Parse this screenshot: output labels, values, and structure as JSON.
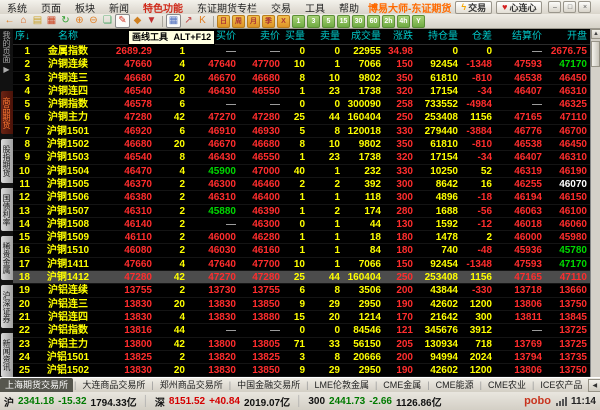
{
  "window": {
    "title": "博易大师-东证期货",
    "trade_button": "交易",
    "heart_button": "心连心",
    "controls": [
      "–",
      "□",
      "×"
    ]
  },
  "menu": {
    "items": [
      "系统",
      "页面",
      "板块",
      "新闻",
      "特色功能",
      "东证期货专栏",
      "交易",
      "工具",
      "帮助"
    ],
    "highlight": "特色功能"
  },
  "toolbar": {
    "icons": [
      {
        "name": "back-icon",
        "glyph": "←",
        "color": "#e07c1f"
      },
      {
        "name": "home-icon",
        "glyph": "⌂",
        "color": "#d8601a"
      },
      {
        "name": "notes-icon",
        "glyph": "▤",
        "color": "#c9a227"
      },
      {
        "name": "card-icon",
        "glyph": "▦",
        "color": "#cc4422"
      },
      {
        "name": "refresh-icon",
        "glyph": "↻",
        "color": "#2f9e2f"
      },
      {
        "name": "zoom-in-icon",
        "glyph": "⊕",
        "color": "#e07c1f"
      },
      {
        "name": "zoom-out-icon",
        "glyph": "⊖",
        "color": "#e07c1f"
      },
      {
        "name": "layers-icon",
        "glyph": "❏",
        "color": "#3aa05a"
      },
      {
        "name": "pencil-icon",
        "glyph": "✎",
        "color": "#d03020",
        "pressed": true
      },
      {
        "name": "ink-icon",
        "glyph": "◆",
        "color": "#d08020"
      },
      {
        "name": "filter-icon",
        "glyph": "▼",
        "color": "#c03030"
      },
      {
        "name": "separator"
      },
      {
        "name": "grid-icon",
        "glyph": "▦",
        "color": "#5070c0",
        "pressed": true
      },
      {
        "name": "chart-icon",
        "glyph": "↗",
        "color": "#c04040"
      },
      {
        "name": "kline-icon",
        "glyph": "K",
        "color": "#e07c1f"
      }
    ],
    "periods_orange": [
      "日",
      "周",
      "月",
      "季",
      "X"
    ],
    "periods_green": [
      "1",
      "3",
      "5",
      "15",
      "30",
      "60",
      "2h",
      "4h",
      "Y"
    ]
  },
  "tooltip": {
    "text": "画线工具",
    "shortcut": "ALT+F12"
  },
  "sidebar": {
    "top_label": "我的页面",
    "top_arrow": "▶",
    "tabs": [
      {
        "label": "商品期货",
        "active": true
      },
      {
        "label": "股指期货",
        "active": false
      },
      {
        "label": "国债利率",
        "active": false
      },
      {
        "label": "稀贵金属",
        "active": false
      },
      {
        "label": "沪深证券",
        "active": false
      },
      {
        "label": "新闻资讯",
        "active": false
      }
    ]
  },
  "table": {
    "headers": [
      "序↓",
      "名称",
      "最新",
      "现量",
      "买价",
      "卖价",
      "买量",
      "卖量",
      "成交量",
      "涨跌",
      "持仓量",
      "仓差",
      "结算价",
      "开盘"
    ],
    "default_colors": [
      "y",
      "y",
      "r",
      "y",
      "r",
      "r",
      "y",
      "y",
      "y",
      "r",
      "y",
      "s",
      "r",
      "r"
    ],
    "palette": {
      "y": "#ffff00",
      "r": "#ff2d2d",
      "g": "#00d800",
      "w": "#ffffff",
      "d": "#9b9b9b"
    },
    "rows": [
      {
        "cells": [
          "1",
          "金属指数",
          "2689.29",
          "1",
          "—",
          "—",
          "0",
          "0",
          "22955",
          "34.98",
          "0",
          "0",
          "—",
          "2676.75"
        ],
        "overrides": {
          "4": "d",
          "5": "d",
          "12": "d"
        }
      },
      {
        "cells": [
          "2",
          "沪铜连续",
          "47660",
          "4",
          "47640",
          "47700",
          "10",
          "1",
          "7066",
          "150",
          "92454",
          "-1348",
          "47593",
          "47170"
        ],
        "overrides": {
          "13": "g"
        }
      },
      {
        "cells": [
          "3",
          "沪铜连三",
          "46680",
          "20",
          "46670",
          "46680",
          "8",
          "10",
          "9802",
          "350",
          "61810",
          "-810",
          "46538",
          "46450"
        ],
        "overrides": {}
      },
      {
        "cells": [
          "4",
          "沪铜连四",
          "46540",
          "8",
          "46430",
          "46550",
          "1",
          "23",
          "1738",
          "320",
          "17154",
          "-34",
          "46407",
          "46310"
        ],
        "overrides": {}
      },
      {
        "cells": [
          "5",
          "沪铜指数",
          "46578",
          "6",
          "—",
          "—",
          "0",
          "0",
          "300090",
          "258",
          "733552",
          "-4984",
          "—",
          "46325"
        ],
        "overrides": {
          "4": "d",
          "5": "d",
          "12": "d"
        }
      },
      {
        "cells": [
          "6",
          "沪铜主力",
          "47280",
          "42",
          "47270",
          "47280",
          "25",
          "44",
          "160404",
          "250",
          "253408",
          "1156",
          "47165",
          "47110"
        ],
        "overrides": {}
      },
      {
        "cells": [
          "7",
          "沪铜1501",
          "46920",
          "6",
          "46910",
          "46930",
          "5",
          "8",
          "120018",
          "330",
          "279440",
          "-3884",
          "46776",
          "46700"
        ],
        "overrides": {}
      },
      {
        "cells": [
          "8",
          "沪铜1502",
          "46680",
          "20",
          "46670",
          "46680",
          "8",
          "10",
          "9802",
          "350",
          "61810",
          "-810",
          "46538",
          "46450"
        ],
        "overrides": {}
      },
      {
        "cells": [
          "9",
          "沪铜1503",
          "46540",
          "8",
          "46430",
          "46550",
          "1",
          "23",
          "1738",
          "320",
          "17154",
          "-34",
          "46407",
          "46310"
        ],
        "overrides": {}
      },
      {
        "cells": [
          "10",
          "沪铜1504",
          "46470",
          "4",
          "45900",
          "47000",
          "40",
          "1",
          "232",
          "330",
          "10250",
          "52",
          "46319",
          "46190"
        ],
        "overrides": {
          "4": "g"
        }
      },
      {
        "cells": [
          "11",
          "沪铜1505",
          "46370",
          "2",
          "46300",
          "46460",
          "2",
          "2",
          "392",
          "300",
          "8642",
          "16",
          "46255",
          "46070"
        ],
        "overrides": {
          "13": "w"
        }
      },
      {
        "cells": [
          "12",
          "沪铜1506",
          "46380",
          "2",
          "46310",
          "46400",
          "1",
          "1",
          "118",
          "300",
          "4896",
          "-18",
          "46194",
          "46150"
        ],
        "overrides": {}
      },
      {
        "cells": [
          "13",
          "沪铜1507",
          "46310",
          "2",
          "45880",
          "46390",
          "1",
          "2",
          "174",
          "280",
          "1688",
          "-56",
          "46063",
          "46100"
        ],
        "overrides": {
          "4": "g"
        }
      },
      {
        "cells": [
          "14",
          "沪铜1508",
          "46140",
          "2",
          "—",
          "46300",
          "0",
          "1",
          "44",
          "130",
          "1592",
          "-12",
          "46018",
          "46060"
        ],
        "overrides": {
          "4": "d"
        }
      },
      {
        "cells": [
          "15",
          "沪铜1509",
          "46110",
          "2",
          "46000",
          "46280",
          "1",
          "1",
          "18",
          "180",
          "1478",
          "2",
          "46000",
          "45980"
        ],
        "overrides": {}
      },
      {
        "cells": [
          "16",
          "沪铜1510",
          "46080",
          "2",
          "46030",
          "46160",
          "1",
          "1",
          "84",
          "180",
          "740",
          "-48",
          "45936",
          "45780"
        ],
        "overrides": {
          "13": "g"
        }
      },
      {
        "cells": [
          "17",
          "沪铜1411",
          "47660",
          "4",
          "47640",
          "47700",
          "10",
          "1",
          "7066",
          "150",
          "92454",
          "-1348",
          "47593",
          "47170"
        ],
        "overrides": {
          "13": "g"
        }
      },
      {
        "cells": [
          "18",
          "沪铜1412",
          "47280",
          "42",
          "47270",
          "47280",
          "25",
          "44",
          "160404",
          "250",
          "253408",
          "1156",
          "47165",
          "47110"
        ],
        "overrides": {},
        "selected": true
      },
      {
        "cells": [
          "19",
          "沪铝连续",
          "13755",
          "2",
          "13730",
          "13755",
          "6",
          "8",
          "3506",
          "200",
          "43844",
          "-330",
          "13718",
          "13660"
        ],
        "overrides": {}
      },
      {
        "cells": [
          "20",
          "沪铝连三",
          "13830",
          "20",
          "13830",
          "13850",
          "9",
          "29",
          "2950",
          "190",
          "42602",
          "1200",
          "13806",
          "13750"
        ],
        "overrides": {}
      },
      {
        "cells": [
          "21",
          "沪铝连四",
          "13830",
          "4",
          "13830",
          "13880",
          "15",
          "20",
          "1214",
          "170",
          "21642",
          "300",
          "13811",
          "13845"
        ],
        "overrides": {}
      },
      {
        "cells": [
          "22",
          "沪铝指数",
          "13816",
          "44",
          "—",
          "—",
          "0",
          "0",
          "84546",
          "121",
          "345676",
          "3912",
          "—",
          "13725"
        ],
        "overrides": {
          "4": "d",
          "5": "d",
          "12": "d"
        }
      },
      {
        "cells": [
          "23",
          "沪铝主力",
          "13800",
          "42",
          "13800",
          "13805",
          "71",
          "33",
          "56150",
          "205",
          "130934",
          "718",
          "13769",
          "13725"
        ],
        "overrides": {}
      },
      {
        "cells": [
          "24",
          "沪铝1501",
          "13825",
          "2",
          "13820",
          "13825",
          "3",
          "8",
          "20666",
          "200",
          "94994",
          "2024",
          "13794",
          "13735"
        ],
        "overrides": {}
      },
      {
        "cells": [
          "25",
          "沪铝1502",
          "13830",
          "20",
          "13830",
          "13850",
          "9",
          "29",
          "2950",
          "190",
          "42602",
          "1200",
          "13806",
          "13750"
        ],
        "overrides": {}
      }
    ]
  },
  "bottom_tabs": {
    "items": [
      "上海期货交易所",
      "大连商品交易所",
      "郑州商品交易所",
      "中国金融交易所",
      "LME伦敦金属",
      "CME金属",
      "CME能源",
      "CME农业",
      "ICE农产品"
    ],
    "active": "上海期货交易所"
  },
  "status": {
    "groups": [
      {
        "label": "沪",
        "value": "2341.18",
        "change": "-15.32",
        "turnover": "1794.33亿",
        "trend": "down"
      },
      {
        "label": "深",
        "value": "8151.52",
        "change": "+40.84",
        "turnover": "2019.07亿",
        "trend": "up"
      },
      {
        "label": "300",
        "value": "2441.73",
        "change": "-2.66",
        "turnover": "1126.86亿",
        "trend": "down"
      }
    ],
    "logo": "pobo",
    "time": "11:14"
  }
}
